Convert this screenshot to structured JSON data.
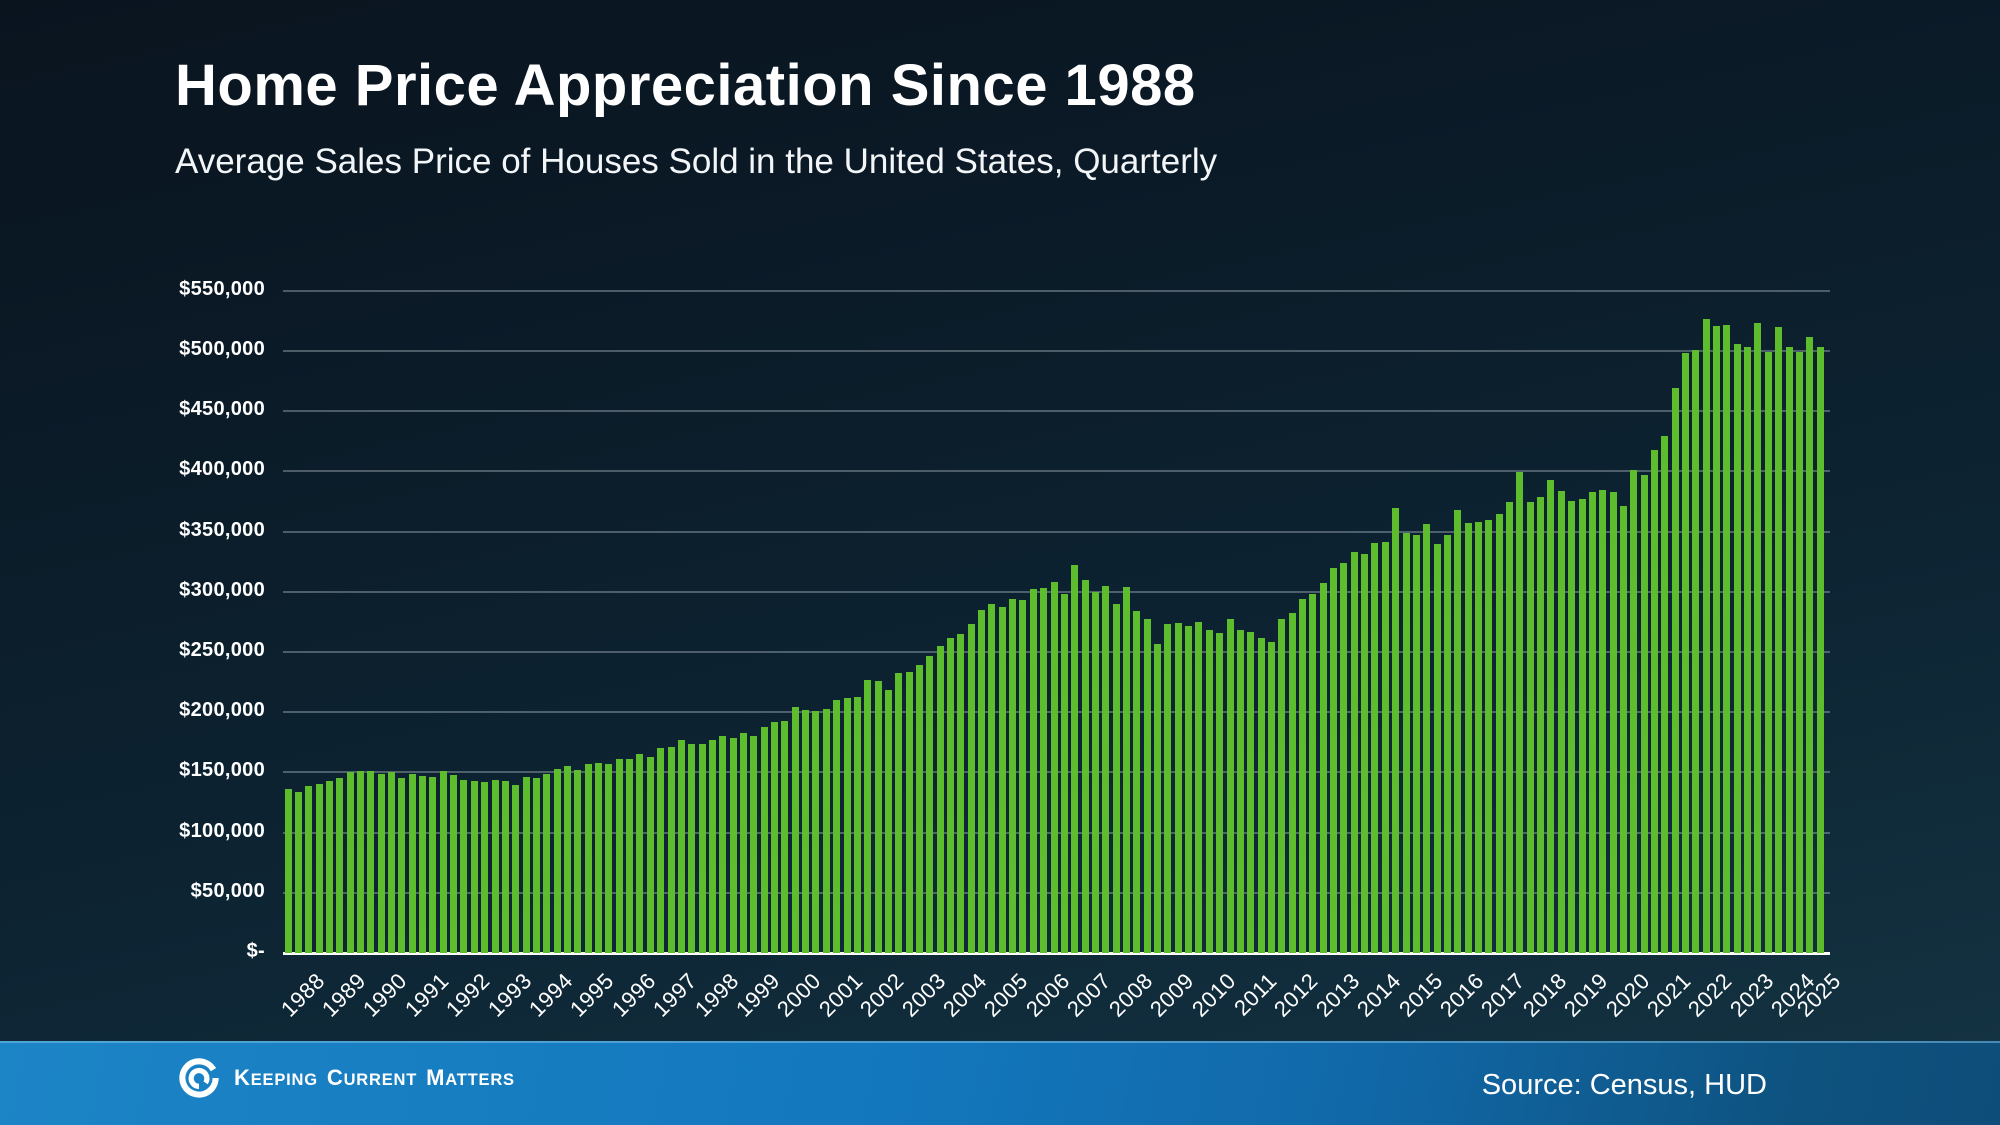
{
  "header": {
    "title": "Home Price Appreciation Since 1988",
    "subtitle": "Average Sales Price of Houses Sold in the United States, Quarterly"
  },
  "chart_data": {
    "type": "bar",
    "title": "Home Price Appreciation Since 1988",
    "subtitle": "Average Sales Price of Houses Sold in the United States, Quarterly",
    "xlabel": "",
    "ylabel": "",
    "unit": "USD",
    "ylim": [
      0,
      550000
    ],
    "grid": "horizontal",
    "bar_color": "#5dbd2d",
    "y_ticks": [
      "$-",
      "$50,000",
      "$100,000",
      "$150,000",
      "$200,000",
      "$250,000",
      "$300,000",
      "$350,000",
      "$400,000",
      "$450,000",
      "$500,000",
      "$550,000"
    ],
    "years": [
      1988,
      1989,
      1990,
      1991,
      1992,
      1993,
      1994,
      1995,
      1996,
      1997,
      1998,
      1999,
      2000,
      2001,
      2002,
      2003,
      2004,
      2005,
      2006,
      2007,
      2008,
      2009,
      2010,
      2011,
      2012,
      2013,
      2014,
      2015,
      2016,
      2017,
      2018,
      2019,
      2020,
      2021,
      2022,
      2023,
      2024,
      2025
    ],
    "frequency": "quarterly",
    "quarterly_values": [
      136000,
      133500,
      138500,
      140000,
      143000,
      145000,
      150000,
      151000,
      151500,
      149000,
      150500,
      145000,
      149000,
      147000,
      146000,
      151000,
      147500,
      144000,
      143000,
      142000,
      143500,
      143000,
      139500,
      146000,
      145000,
      148500,
      152500,
      155000,
      152000,
      157000,
      157500,
      157000,
      161000,
      161500,
      165000,
      162500,
      170000,
      171500,
      177000,
      173500,
      173500,
      177000,
      180000,
      178500,
      183000,
      180000,
      187500,
      192000,
      192500,
      204000,
      202000,
      201000,
      203000,
      210500,
      211500,
      213000,
      227000,
      226000,
      218500,
      232500,
      233000,
      239000,
      246500,
      255000,
      261500,
      265000,
      273000,
      285000,
      289500,
      287000,
      294000,
      293000,
      302000,
      303000,
      308000,
      298500,
      322000,
      310000,
      300000,
      305000,
      289500,
      304000,
      284000,
      277000,
      256500,
      273000,
      274000,
      272000,
      275000,
      268500,
      265500,
      277500,
      268000,
      266500,
      262000,
      258500,
      277000,
      282000,
      294000,
      298500,
      307500,
      320000,
      324000,
      333000,
      331000,
      340500,
      341000,
      369500,
      348500,
      347000,
      356000,
      340000,
      347000,
      368000,
      357500,
      358000,
      360000,
      364500,
      375000,
      399500,
      375000,
      379000,
      393000,
      384000,
      375500,
      377000,
      383000,
      384500,
      382500,
      371500,
      401500,
      397000,
      417500,
      429000,
      469000,
      498000,
      500500,
      526500,
      521000,
      521500,
      506000,
      503000,
      523000,
      499500,
      520000,
      503500,
      499500,
      511500,
      503500
    ]
  },
  "footer": {
    "brand": "Keeping Current Matters",
    "source": "Source: Census, HUD"
  },
  "colors": {
    "background_top": "#0a141f",
    "background_bottom": "#153747",
    "bar_green": "#5dbd2d",
    "footer_blue_left": "#1c85c6",
    "footer_blue_right": "#0d4d7a",
    "gridline": "rgba(205,218,224,0.34)",
    "text": "#ffffff"
  }
}
